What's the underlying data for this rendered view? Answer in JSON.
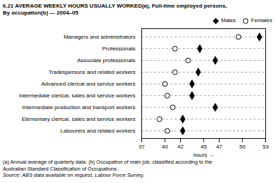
{
  "chart_data": {
    "type": "dot",
    "title": "6.21   AVERAGE WEEKLY HOURS USUALLY WORKED(a), Full-time employed persons,",
    "subtitle": "By occupation(b) — 2004–05",
    "categories": [
      "Managers and administrators",
      "Professionals",
      "Associate professionals",
      "Tradespersons and related workers",
      "Advanced clerical and service workers",
      "Intermediate clerical, sales and service workers",
      "Intermediate production and transport workers",
      "Elementary clerical, sales and service workers",
      "Labourers and related workers"
    ],
    "series": [
      {
        "name": "Males",
        "color": "#000000",
        "marker": "diamond",
        "values": [
          52.2,
          44.5,
          46.5,
          44.3,
          43.5,
          43.5,
          46.5,
          42.3,
          42.3
        ]
      },
      {
        "name": "Females",
        "color": "#000000",
        "marker": "open-circle",
        "values": [
          49.5,
          41.3,
          43.0,
          41.3,
          40.0,
          40.3,
          41.0,
          39.3,
          40.3
        ]
      }
    ],
    "xlabel": "hours",
    "xlim": [
      37,
      53
    ],
    "xticks": [
      37,
      40,
      42,
      45,
      47,
      50,
      53
    ],
    "grid": true,
    "legend": "top right",
    "footnotes": [
      "(a) Annual average of quarterly data.  (b) Occupation of main job; classified according to the",
      "Australian Standard Classification of Occupations."
    ],
    "source": "Source: ABS data available on request, Labour Force Survey."
  }
}
